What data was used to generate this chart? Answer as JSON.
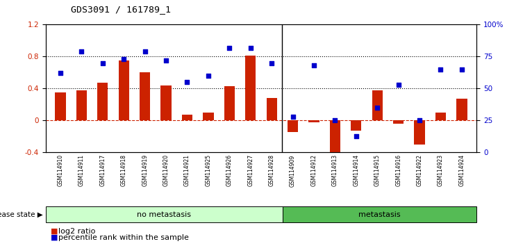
{
  "title": "GDS3091 / 161789_1",
  "categories": [
    "GSM114910",
    "GSM114911",
    "GSM114917",
    "GSM114918",
    "GSM114919",
    "GSM114920",
    "GSM114921",
    "GSM114925",
    "GSM114926",
    "GSM114927",
    "GSM114928",
    "GSM114909",
    "GSM114912",
    "GSM114913",
    "GSM114914",
    "GSM114915",
    "GSM114916",
    "GSM114922",
    "GSM114923",
    "GSM114924"
  ],
  "log2_ratio": [
    0.35,
    0.38,
    0.47,
    0.75,
    0.6,
    0.44,
    0.07,
    0.1,
    0.43,
    0.81,
    0.28,
    -0.14,
    -0.02,
    -0.5,
    -0.13,
    0.38,
    -0.04,
    -0.3,
    0.1,
    0.27
  ],
  "percentile_rank": [
    62,
    79,
    70,
    73,
    79,
    72,
    55,
    60,
    82,
    82,
    70,
    28,
    68,
    25,
    13,
    35,
    53,
    25,
    65,
    65
  ],
  "no_metastasis_count": 11,
  "bar_color_red": "#CC2200",
  "bar_color_blue": "#0000CC",
  "zero_line_color": "#CC2200",
  "ylim_left": [
    -0.4,
    1.2
  ],
  "ylim_right": [
    0,
    100
  ],
  "yticks_left": [
    -0.4,
    0.0,
    0.4,
    0.8,
    1.2
  ],
  "yticks_right": [
    0,
    25,
    50,
    75,
    100
  ],
  "ytick_labels_left": [
    "-0.4",
    "0",
    "0.4",
    "0.8",
    "1.2"
  ],
  "ytick_labels_right": [
    "0",
    "25",
    "50",
    "75",
    "100%"
  ],
  "plot_bg_color": "#ffffff",
  "no_metastasis_color": "#ccffcc",
  "metastasis_color": "#55bb55",
  "label_log2": "log2 ratio",
  "label_pct": "percentile rank within the sample",
  "disease_state_label": "disease state",
  "no_metastasis_label": "no metastasis",
  "metastasis_label": "metastasis"
}
